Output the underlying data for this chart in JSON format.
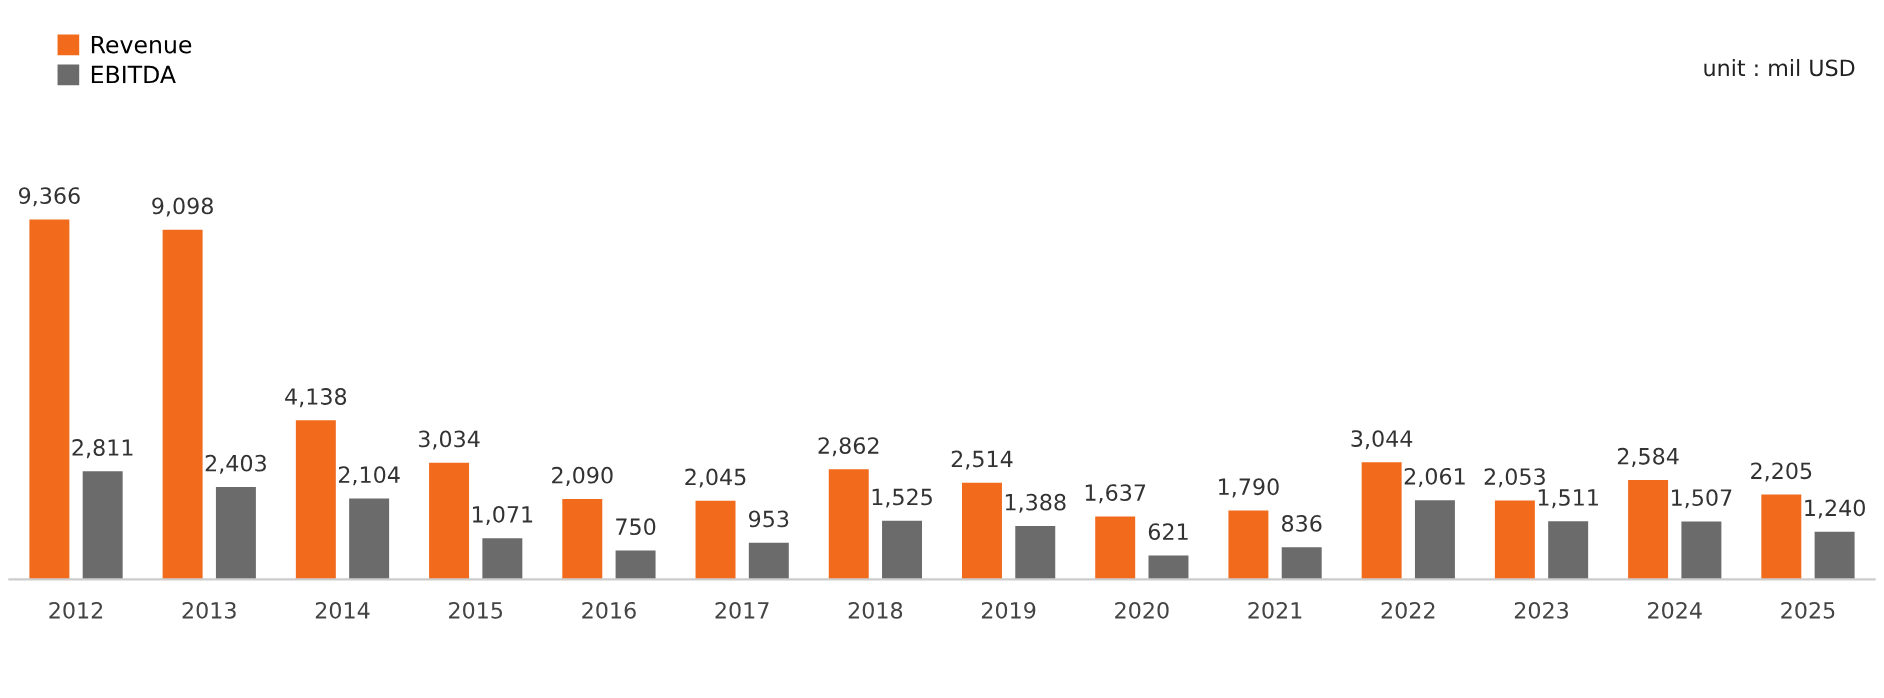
{
  "chart_data": {
    "type": "bar",
    "categories": [
      "2012",
      "2013",
      "2014",
      "2015",
      "2016",
      "2017",
      "2018",
      "2019",
      "2020",
      "2021",
      "2022",
      "2023",
      "2024",
      "2025"
    ],
    "series": [
      {
        "name": "Revenue",
        "color": "#f26a1b",
        "values": [
          9366,
          9098,
          4138,
          3034,
          2090,
          2045,
          2862,
          2514,
          1637,
          1790,
          3044,
          2053,
          2584,
          2205
        ],
        "value_labels": [
          "9,366",
          "9,098",
          "4,138",
          "3,034",
          "2,090",
          "2,045",
          "2,862",
          "2,514",
          "1,637",
          "1,790",
          "3,044",
          "2,053",
          "2,584",
          "2,205"
        ]
      },
      {
        "name": "EBITDA",
        "color": "#6b6b6b",
        "values": [
          2811,
          2403,
          2104,
          1071,
          750,
          953,
          1525,
          1388,
          621,
          836,
          2061,
          1511,
          1507,
          1240
        ],
        "value_labels": [
          "2,811",
          "2,403",
          "2,104",
          "1,071",
          "750",
          "953",
          "1,525",
          "1,388",
          "621",
          "836",
          "2,061",
          "1,511",
          "1,507",
          "1,240"
        ]
      }
    ],
    "legend": "top left",
    "grid": false,
    "tick_labels": "x",
    "annotations": [
      "unit : mil USD"
    ]
  }
}
